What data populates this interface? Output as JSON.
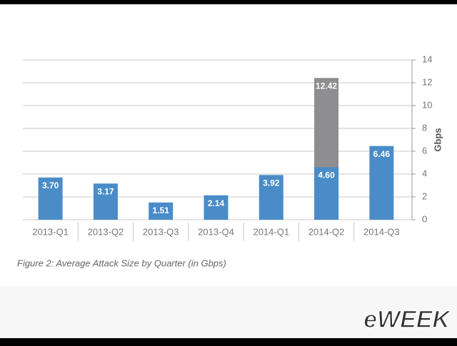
{
  "chart_data": {
    "type": "bar",
    "caption": "Figure 2: Average Attack Size by Quarter (in Gbps)",
    "y_axis_label": "Gbps",
    "categories": [
      "2013-Q1",
      "2013-Q2",
      "2013-Q3",
      "2013-Q4",
      "2014-Q1",
      "2014-Q2",
      "2014-Q3"
    ],
    "series": [
      {
        "color": "#8e8e90",
        "values": [
          null,
          null,
          null,
          null,
          null,
          12.42,
          null
        ],
        "value_labels": [
          null,
          null,
          null,
          null,
          null,
          "12.42",
          null
        ]
      },
      {
        "color": "#4a8cc8",
        "values": [
          3.7,
          3.17,
          1.51,
          2.14,
          3.92,
          4.6,
          6.46
        ],
        "value_labels": [
          "3.70",
          "3.17",
          "1.51",
          "2.14",
          "3.92",
          "4.60",
          "6.46"
        ]
      }
    ],
    "ylim": [
      0,
      14
    ],
    "yticks": [
      0,
      2,
      4,
      6,
      8,
      10,
      12,
      14
    ],
    "grid": true,
    "y_axis_side": "right"
  },
  "watermark": "eWEEK"
}
